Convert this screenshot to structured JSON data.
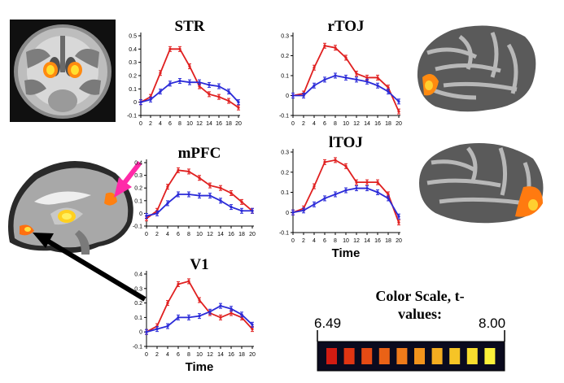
{
  "colors": {
    "sham": "#e02020",
    "rtms": "#2a2ad8",
    "activation_low": "#d01010",
    "activation_high": "#ffff40"
  },
  "panels": [
    {
      "id": "str",
      "title": "STR",
      "xlabel": "",
      "yticks": [
        "0.5",
        "0.4",
        "0.3",
        "0.2",
        "0.1",
        "0",
        "-0.1"
      ],
      "xticks": [
        "0",
        "2",
        "4",
        "6",
        "8",
        "10",
        "12",
        "14",
        "16",
        "18",
        "20"
      ]
    },
    {
      "id": "rtoj",
      "title": "rTOJ",
      "xlabel": "",
      "yticks": [
        "0.3",
        "0.2",
        "0.1",
        "0",
        "-0.1"
      ],
      "xticks": [
        "0",
        "2",
        "4",
        "6",
        "8",
        "10",
        "12",
        "14",
        "16",
        "18",
        "20"
      ]
    },
    {
      "id": "mpfc",
      "title": "mPFC",
      "xlabel": "",
      "yticks": [
        "0.4",
        "0.3",
        "0.2",
        "0.1",
        "0",
        "-0.1"
      ],
      "xticks": [
        "0",
        "2",
        "4",
        "6",
        "8",
        "10",
        "12",
        "14",
        "16",
        "18",
        "20"
      ]
    },
    {
      "id": "ltoj",
      "title": "lTOJ",
      "xlabel": "Time",
      "yticks": [
        "0.3",
        "0.2",
        "0.1",
        "0",
        "-0.1"
      ],
      "xticks": [
        "0",
        "2",
        "4",
        "6",
        "8",
        "10",
        "12",
        "14",
        "16",
        "18",
        "20"
      ]
    },
    {
      "id": "v1",
      "title": "V1",
      "xlabel": "Time",
      "yticks": [
        "0.4",
        "0.3",
        "0.2",
        "0.1",
        "0",
        "-0.1"
      ],
      "xticks": [
        "0",
        "2",
        "4",
        "6",
        "8",
        "10",
        "12",
        "14",
        "16",
        "18",
        "20"
      ]
    }
  ],
  "chart_data": [
    {
      "type": "line",
      "title": "STR",
      "xlabel": "",
      "ylabel": "",
      "ylim": [
        -0.1,
        0.5
      ],
      "x": [
        0,
        2,
        4,
        6,
        8,
        10,
        12,
        14,
        16,
        18,
        20
      ],
      "series": [
        {
          "values": [
            0,
            0.04,
            0.22,
            0.4,
            0.4,
            0.27,
            0.12,
            0.06,
            0.04,
            0.01,
            -0.04
          ]
        },
        {
          "values": [
            0,
            0.02,
            0.08,
            0.14,
            0.16,
            0.15,
            0.15,
            0.13,
            0.12,
            0.08,
            0.0
          ]
        }
      ]
    },
    {
      "type": "line",
      "title": "rTOJ",
      "xlabel": "",
      "ylabel": "",
      "ylim": [
        -0.1,
        0.3
      ],
      "x": [
        0,
        2,
        4,
        6,
        8,
        10,
        12,
        14,
        16,
        18,
        20
      ],
      "series": [
        {
          "values": [
            0,
            0.01,
            0.14,
            0.25,
            0.24,
            0.19,
            0.11,
            0.09,
            0.09,
            0.04,
            -0.08
          ]
        },
        {
          "values": [
            0,
            0.0,
            0.05,
            0.08,
            0.1,
            0.09,
            0.08,
            0.07,
            0.05,
            0.02,
            -0.03
          ]
        }
      ]
    },
    {
      "type": "line",
      "title": "mPFC",
      "xlabel": "",
      "ylabel": "",
      "ylim": [
        -0.1,
        0.4
      ],
      "x": [
        0,
        2,
        4,
        6,
        8,
        10,
        12,
        14,
        16,
        18,
        20
      ],
      "series": [
        {
          "values": [
            -0.04,
            0.02,
            0.21,
            0.34,
            0.33,
            0.28,
            0.22,
            0.2,
            0.16,
            0.09,
            0.02
          ]
        },
        {
          "values": [
            -0.02,
            0.0,
            0.08,
            0.15,
            0.15,
            0.14,
            0.14,
            0.1,
            0.05,
            0.02,
            0.02
          ]
        }
      ]
    },
    {
      "type": "line",
      "title": "lTOJ",
      "xlabel": "Time",
      "ylabel": "",
      "ylim": [
        -0.1,
        0.3
      ],
      "x": [
        0,
        2,
        4,
        6,
        8,
        10,
        12,
        14,
        16,
        18,
        20
      ],
      "series": [
        {
          "values": [
            0,
            0.02,
            0.13,
            0.25,
            0.26,
            0.23,
            0.15,
            0.15,
            0.15,
            0.09,
            -0.05
          ]
        },
        {
          "values": [
            0,
            0.01,
            0.04,
            0.07,
            0.09,
            0.11,
            0.12,
            0.12,
            0.1,
            0.07,
            -0.02
          ]
        }
      ]
    },
    {
      "type": "line",
      "title": "V1",
      "xlabel": "Time",
      "ylabel": "",
      "ylim": [
        -0.1,
        0.4
      ],
      "x": [
        0,
        2,
        4,
        6,
        8,
        10,
        12,
        14,
        16,
        18,
        20
      ],
      "series": [
        {
          "values": [
            0,
            0.04,
            0.2,
            0.33,
            0.35,
            0.22,
            0.13,
            0.1,
            0.13,
            0.1,
            0.02
          ]
        },
        {
          "values": [
            0,
            0.02,
            0.04,
            0.1,
            0.1,
            0.11,
            0.14,
            0.18,
            0.16,
            0.12,
            0.05
          ]
        }
      ]
    }
  ],
  "color_scale": {
    "title": "Color Scale, t-values:",
    "min": "6.49",
    "max": "8.00",
    "swatches": [
      "#d21b12",
      "#e03512",
      "#e44a14",
      "#ea6216",
      "#ef7a1a",
      "#f2931c",
      "#f4ac20",
      "#f6c426",
      "#f8dc2e",
      "#fbf03a"
    ]
  },
  "images": {
    "coronal": "coronal-brain-slice",
    "sagittal": "sagittal-brain-slice",
    "lateral_right": "right-hemisphere-surface",
    "lateral_left": "left-hemisphere-surface"
  }
}
